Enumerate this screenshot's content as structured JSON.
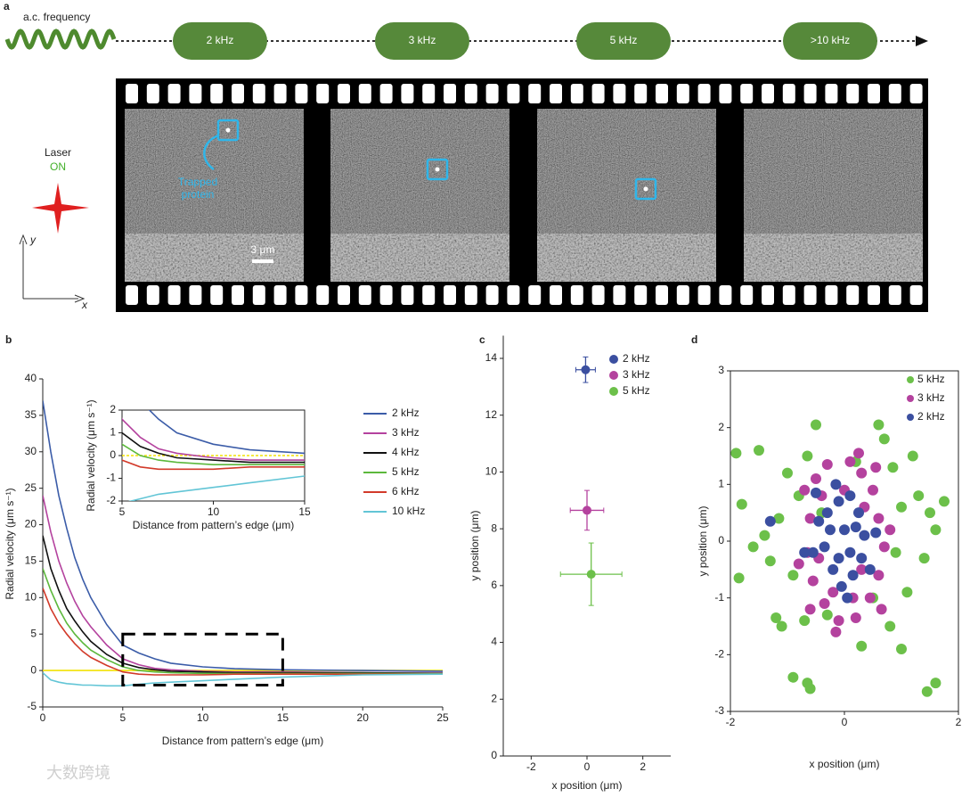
{
  "panel_a": {
    "label": "a",
    "input_label": "a.c. frequency",
    "frequencies": [
      "2 kHz",
      "3 kHz",
      "5 kHz",
      ">10 kHz"
    ],
    "laser_label": "Laser",
    "laser_state": "ON",
    "axis_y": "y",
    "axis_x": "x",
    "annotation": [
      "Trapped",
      "protein"
    ],
    "scale_bar": "3 μm"
  },
  "chart_data": [
    {
      "panel": "b",
      "type": "line",
      "x": [
        0,
        0.5,
        1,
        1.5,
        2,
        2.5,
        3,
        4,
        5,
        6,
        7,
        8,
        10,
        12,
        15,
        20,
        25
      ],
      "series": [
        {
          "name": "2 kHz",
          "color": "#3b5ca8",
          "values": [
            37,
            30,
            24,
            19.5,
            15.5,
            12.5,
            10,
            6.3,
            3.5,
            2.4,
            1.6,
            1.0,
            0.5,
            0.25,
            0.1,
            0,
            -0.1
          ]
        },
        {
          "name": "3 kHz",
          "color": "#b4429e",
          "values": [
            24,
            19,
            15,
            12,
            9.5,
            7.5,
            6,
            3.5,
            1.6,
            0.8,
            0.3,
            0.1,
            -0.1,
            -0.2,
            -0.2,
            -0.3,
            -0.3
          ]
        },
        {
          "name": "4 kHz",
          "color": "#111111",
          "values": [
            18.5,
            14,
            11,
            8.5,
            6.8,
            5.3,
            4,
            2.2,
            1.0,
            0.4,
            0.1,
            -0.1,
            -0.2,
            -0.3,
            -0.3,
            -0.3,
            -0.4
          ]
        },
        {
          "name": "5 kHz",
          "color": "#5cb83c",
          "values": [
            14,
            11,
            8.5,
            6.5,
            5,
            3.8,
            2.8,
            1.5,
            0.5,
            0,
            -0.2,
            -0.3,
            -0.4,
            -0.4,
            -0.4,
            -0.4,
            -0.4
          ]
        },
        {
          "name": "6 kHz",
          "color": "#d23a2a",
          "values": [
            11.3,
            8.5,
            6.5,
            5,
            3.7,
            2.6,
            1.8,
            0.7,
            -0.2,
            -0.5,
            -0.6,
            -0.6,
            -0.6,
            -0.5,
            -0.5,
            -0.5,
            -0.5
          ]
        },
        {
          "name": "10 kHz",
          "color": "#62c5d6",
          "values": [
            -0.3,
            -1.3,
            -1.6,
            -1.8,
            -1.9,
            -2,
            -2,
            -2.1,
            -2.1,
            -1.9,
            -1.7,
            -1.6,
            -1.4,
            -1.2,
            -0.9,
            -0.6,
            -0.5
          ]
        }
      ],
      "reference_line": {
        "value": 0,
        "color": "#f2e205"
      },
      "highlight_box": {
        "x": [
          5,
          15
        ],
        "y": [
          -2,
          5
        ]
      },
      "xlim": [
        0,
        25
      ],
      "ylim": [
        -5,
        40
      ],
      "xticks": [
        0,
        5,
        10,
        15,
        20,
        25
      ],
      "yticks": [
        -5,
        0,
        5,
        10,
        15,
        20,
        25,
        30,
        35,
        40
      ],
      "xlabel": "Distance from pattern’s edge (μm)",
      "ylabel": "Radial velocity (μm s⁻¹)",
      "inset": {
        "xlim": [
          5,
          15
        ],
        "ylim": [
          -2,
          2
        ],
        "xticks": [
          5,
          10,
          15
        ],
        "yticks": [
          -2,
          -1,
          0,
          1,
          2
        ],
        "xlabel": "Distance from pattern’s edge (μm)",
        "ylabel": "Radial velocity (μm s⁻¹)"
      }
    },
    {
      "panel": "c",
      "type": "errorbar",
      "series": [
        {
          "name": "2 kHz",
          "color": "#3b4fa0",
          "x": [
            -0.05
          ],
          "values": [
            13.6
          ],
          "xerr": [
            0.35
          ],
          "yerr": [
            0.45
          ]
        },
        {
          "name": "3 kHz",
          "color": "#b4429e",
          "x": [
            0.0
          ],
          "values": [
            8.65
          ],
          "xerr": [
            0.6
          ],
          "yerr": [
            0.7
          ]
        },
        {
          "name": "5 kHz",
          "color": "#6cc04a",
          "x": [
            0.15
          ],
          "values": [
            6.4
          ],
          "xerr": [
            1.1
          ],
          "yerr": [
            1.1
          ]
        }
      ],
      "xlim": [
        -3,
        3
      ],
      "ylim": [
        0,
        14.8
      ],
      "xticks": [
        -2,
        0,
        2
      ],
      "yticks": [
        0,
        2,
        4,
        6,
        8,
        10,
        12,
        14
      ],
      "xlabel": "x position (μm)",
      "ylabel": "y position (μm)"
    },
    {
      "panel": "d",
      "type": "scatter",
      "series": [
        {
          "name": "5 kHz",
          "color": "#6cc04a",
          "x": [
            -1.9,
            -1.5,
            -1.8,
            -1.6,
            -1.85,
            -1.3,
            -1.2,
            -1.1,
            -0.9,
            -0.65,
            -0.6,
            -0.7,
            -0.5,
            -0.65,
            -1.0,
            -1.15,
            -0.8,
            -0.9,
            0.3,
            0.6,
            0.7,
            0.85,
            1.0,
            1.3,
            1.5,
            1.6,
            1.75,
            1.4,
            1.1,
            0.8,
            1.0,
            1.45,
            1.6,
            0.5,
            -0.3,
            0.2,
            -0.4,
            0.9,
            -1.4,
            1.2
          ],
          "values": [
            1.55,
            1.6,
            0.65,
            -0.1,
            -0.65,
            -0.35,
            -1.35,
            -1.5,
            -2.4,
            -2.5,
            -2.6,
            -1.4,
            2.05,
            1.5,
            1.2,
            0.4,
            0.8,
            -0.6,
            -1.85,
            2.05,
            1.8,
            1.3,
            0.6,
            0.8,
            0.5,
            0.2,
            0.7,
            -0.3,
            -0.9,
            -1.5,
            -1.9,
            -2.65,
            -2.5,
            -1.0,
            -1.3,
            1.4,
            0.5,
            -0.2,
            0.1,
            1.5
          ]
        },
        {
          "name": "3 kHz",
          "color": "#b4429e",
          "x": [
            -0.5,
            -0.3,
            0.1,
            0.3,
            0.5,
            0.6,
            0.7,
            0.6,
            0.45,
            0.2,
            -0.1,
            -0.35,
            -0.55,
            -0.65,
            -0.6,
            -0.4,
            -0.7,
            0.55,
            -0.2,
            0.3,
            0.35,
            -0.45,
            0.0,
            0.15,
            0.8,
            -0.8,
            0.25,
            -0.15,
            0.65,
            -0.6
          ],
          "values": [
            1.1,
            1.35,
            1.4,
            1.2,
            0.9,
            0.4,
            -0.1,
            -0.6,
            -1.0,
            -1.35,
            -1.4,
            -1.1,
            -0.7,
            -0.2,
            0.4,
            0.8,
            0.9,
            1.3,
            -0.9,
            -0.5,
            0.6,
            -0.3,
            0.9,
            -1.0,
            0.2,
            -0.4,
            1.55,
            -1.6,
            -1.2,
            -1.2
          ]
        },
        {
          "name": "2 kHz",
          "color": "#3b4fa0",
          "x": [
            -0.3,
            -0.1,
            0.1,
            0.25,
            0.35,
            0.3,
            0.15,
            -0.05,
            -0.2,
            -0.35,
            -0.25,
            0.0,
            0.1,
            -0.1,
            0.2,
            -0.45,
            0.45,
            -0.55,
            -0.5,
            0.55,
            0.05,
            -0.15,
            -1.3,
            -0.7
          ],
          "values": [
            0.5,
            0.7,
            0.8,
            0.5,
            0.1,
            -0.3,
            -0.6,
            -0.8,
            -0.5,
            -0.1,
            0.2,
            0.2,
            -0.2,
            -0.3,
            0.25,
            0.35,
            -0.5,
            -0.2,
            0.85,
            0.15,
            -1.0,
            1.0,
            0.35,
            -0.2
          ]
        }
      ],
      "xlim": [
        -2,
        2
      ],
      "ylim": [
        -3,
        3
      ],
      "xticks": [
        -2,
        0,
        2
      ],
      "yticks": [
        -3,
        -2,
        -1,
        0,
        1,
        2,
        3
      ],
      "xlabel": "x position (μm)",
      "ylabel": "y position (μm)"
    }
  ],
  "watermark": "大数跨境"
}
